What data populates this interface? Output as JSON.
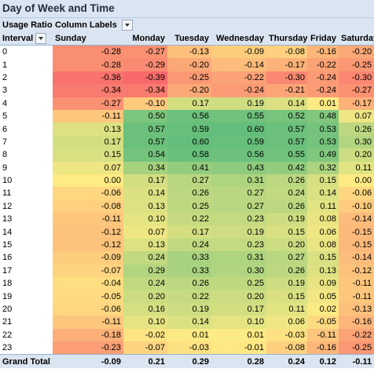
{
  "title": "Day of Week and Time",
  "header": {
    "values_label": "Usage Ratio",
    "column_labels": "Column Labels",
    "row_field": "Interval",
    "days": [
      "Sunday",
      "Monday",
      "Tuesday",
      "Wednesday",
      "Thursday",
      "Friday",
      "Saturday"
    ]
  },
  "rows": [
    {
      "interval": "0",
      "values": [
        "-0.28",
        "-0.27",
        "-0.13",
        "-0.09",
        "-0.08",
        "-0.16",
        "-0.20"
      ]
    },
    {
      "interval": "1",
      "values": [
        "-0.28",
        "-0.29",
        "-0.20",
        "-0.14",
        "-0.17",
        "-0.22",
        "-0.25"
      ]
    },
    {
      "interval": "2",
      "values": [
        "-0.36",
        "-0.39",
        "-0.25",
        "-0.22",
        "-0.30",
        "-0.24",
        "-0.30"
      ]
    },
    {
      "interval": "3",
      "values": [
        "-0.34",
        "-0.34",
        "-0.20",
        "-0.24",
        "-0.21",
        "-0.24",
        "-0.27"
      ]
    },
    {
      "interval": "4",
      "values": [
        "-0.27",
        "-0.10",
        "0.17",
        "0.19",
        "0.14",
        "0.01",
        "-0.17"
      ]
    },
    {
      "interval": "5",
      "values": [
        "-0.11",
        "0.50",
        "0.56",
        "0.55",
        "0.52",
        "0.48",
        "0.07"
      ]
    },
    {
      "interval": "6",
      "values": [
        "0.13",
        "0.57",
        "0.59",
        "0.60",
        "0.57",
        "0.53",
        "0.26"
      ]
    },
    {
      "interval": "7",
      "values": [
        "0.17",
        "0.57",
        "0.60",
        "0.59",
        "0.57",
        "0.53",
        "0.30"
      ]
    },
    {
      "interval": "8",
      "values": [
        "0.15",
        "0.54",
        "0.58",
        "0.56",
        "0.55",
        "0.49",
        "0.20"
      ]
    },
    {
      "interval": "9",
      "values": [
        "0.07",
        "0.34",
        "0.41",
        "0.43",
        "0.42",
        "0.32",
        "0.11"
      ]
    },
    {
      "interval": "10",
      "values": [
        "0.00",
        "0.17",
        "0.27",
        "0.31",
        "0.26",
        "0.15",
        "0.00"
      ]
    },
    {
      "interval": "11",
      "values": [
        "-0.06",
        "0.14",
        "0.26",
        "0.27",
        "0.24",
        "0.14",
        "-0.06"
      ]
    },
    {
      "interval": "12",
      "values": [
        "-0.08",
        "0.13",
        "0.25",
        "0.27",
        "0.26",
        "0.11",
        "-0.10"
      ]
    },
    {
      "interval": "13",
      "values": [
        "-0.11",
        "0.10",
        "0.22",
        "0.23",
        "0.19",
        "0.08",
        "-0.14"
      ]
    },
    {
      "interval": "14",
      "values": [
        "-0.12",
        "0.07",
        "0.17",
        "0.19",
        "0.15",
        "0.06",
        "-0.15"
      ]
    },
    {
      "interval": "15",
      "values": [
        "-0.12",
        "0.13",
        "0.24",
        "0.23",
        "0.20",
        "0.08",
        "-0.15"
      ]
    },
    {
      "interval": "16",
      "values": [
        "-0.09",
        "0.24",
        "0.33",
        "0.31",
        "0.27",
        "0.15",
        "-0.14"
      ]
    },
    {
      "interval": "17",
      "values": [
        "-0.07",
        "0.29",
        "0.33",
        "0.30",
        "0.26",
        "0.13",
        "-0.12"
      ]
    },
    {
      "interval": "18",
      "values": [
        "-0.04",
        "0.24",
        "0.26",
        "0.25",
        "0.19",
        "0.09",
        "-0.11"
      ]
    },
    {
      "interval": "19",
      "values": [
        "-0.05",
        "0.20",
        "0.22",
        "0.20",
        "0.15",
        "0.05",
        "-0.11"
      ]
    },
    {
      "interval": "20",
      "values": [
        "-0.06",
        "0.16",
        "0.19",
        "0.17",
        "0.11",
        "0.02",
        "-0.13"
      ]
    },
    {
      "interval": "21",
      "values": [
        "-0.11",
        "0.10",
        "0.14",
        "0.10",
        "0.06",
        "-0.05",
        "-0.16"
      ]
    },
    {
      "interval": "22",
      "values": [
        "-0.18",
        "-0.02",
        "0.01",
        "0.01",
        "-0.03",
        "-0.11",
        "-0.22"
      ]
    },
    {
      "interval": "23",
      "values": [
        "-0.23",
        "-0.07",
        "-0.03",
        "-0.01",
        "-0.08",
        "-0.16",
        "-0.25"
      ]
    }
  ],
  "total": {
    "label": "Grand Total",
    "values": [
      "-0.09",
      "0.21",
      "0.29",
      "0.28",
      "0.24",
      "0.12",
      "-0.11"
    ]
  },
  "colors": {
    "scale_min": "#f8696b",
    "scale_mid": "#ffeb84",
    "scale_max": "#63be7b",
    "header_bg": "#dbe5f1"
  },
  "color_scale_range": [
    -0.39,
    0.6
  ]
}
